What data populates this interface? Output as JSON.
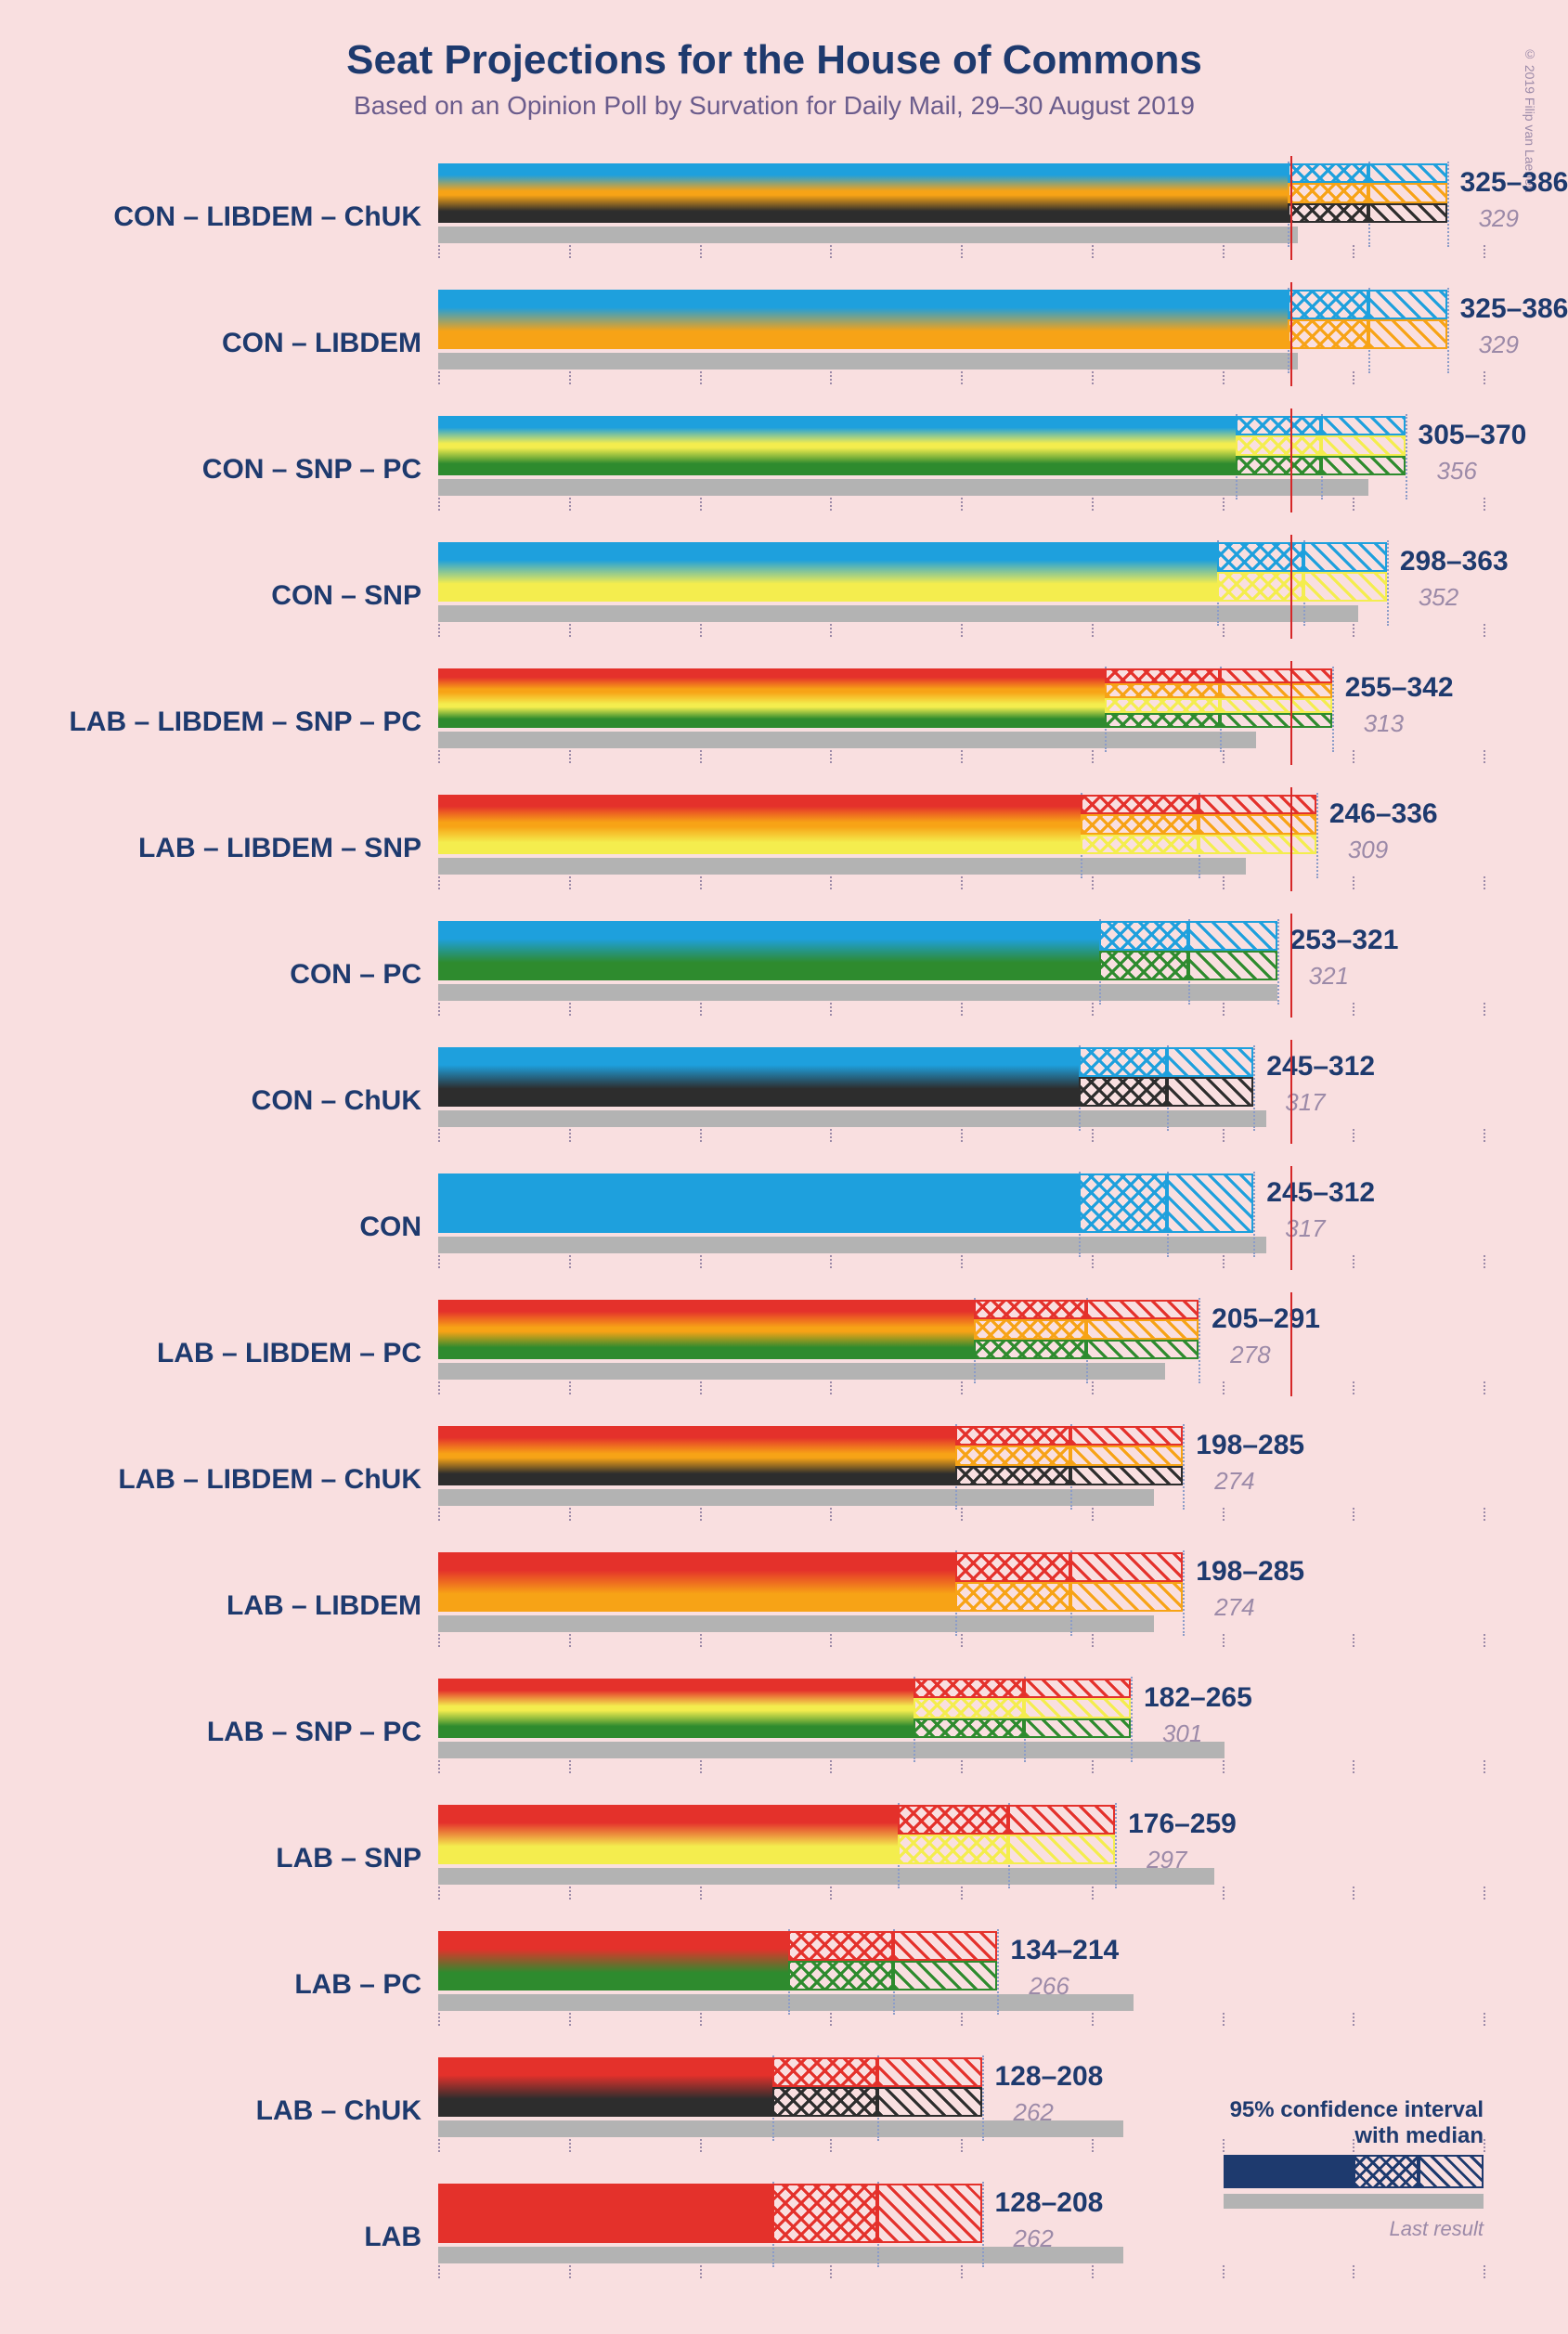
{
  "title": "Seat Projections for the House of Commons",
  "subtitle": "Based on an Opinion Poll by Survation for Daily Mail, 29–30 August 2019",
  "copyright": "© 2019 Filip van Laenen",
  "chart": {
    "xmax": 400,
    "tick_step": 50,
    "majority": 326,
    "party_colors": {
      "CON": "#1ea0dd",
      "LAB": "#e4312b",
      "LIBDEM": "#f7a316",
      "SNP": "#f4ed4e",
      "PC": "#2e8b2e",
      "ChUK": "#2d2d2d"
    },
    "prev_color": "#b3b3b3",
    "tick_color": "#9c8aa8",
    "majority_color": "#d62728",
    "guide_color": "#8c9cc8"
  },
  "rows": [
    {
      "label": "CON – LIBDEM – ChUK",
      "parties": [
        "CON",
        "LIBDEM",
        "ChUK"
      ],
      "lo": 325,
      "med": 356,
      "hi": 386,
      "prev": 329,
      "range": "325–386",
      "prev_text": "329"
    },
    {
      "label": "CON – LIBDEM",
      "parties": [
        "CON",
        "LIBDEM"
      ],
      "lo": 325,
      "med": 356,
      "hi": 386,
      "prev": 329,
      "range": "325–386",
      "prev_text": "329"
    },
    {
      "label": "CON – SNP – PC",
      "parties": [
        "CON",
        "SNP",
        "PC"
      ],
      "lo": 305,
      "med": 338,
      "hi": 370,
      "prev": 356,
      "range": "305–370",
      "prev_text": "356"
    },
    {
      "label": "CON – SNP",
      "parties": [
        "CON",
        "SNP"
      ],
      "lo": 298,
      "med": 331,
      "hi": 363,
      "prev": 352,
      "range": "298–363",
      "prev_text": "352"
    },
    {
      "label": "LAB – LIBDEM – SNP – PC",
      "parties": [
        "LAB",
        "LIBDEM",
        "SNP",
        "PC"
      ],
      "lo": 255,
      "med": 299,
      "hi": 342,
      "prev": 313,
      "range": "255–342",
      "prev_text": "313"
    },
    {
      "label": "LAB – LIBDEM – SNP",
      "parties": [
        "LAB",
        "LIBDEM",
        "SNP"
      ],
      "lo": 246,
      "med": 291,
      "hi": 336,
      "prev": 309,
      "range": "246–336",
      "prev_text": "309"
    },
    {
      "label": "CON – PC",
      "parties": [
        "CON",
        "PC"
      ],
      "lo": 253,
      "med": 287,
      "hi": 321,
      "prev": 321,
      "range": "253–321",
      "prev_text": "321"
    },
    {
      "label": "CON – ChUK",
      "parties": [
        "CON",
        "ChUK"
      ],
      "lo": 245,
      "med": 279,
      "hi": 312,
      "prev": 317,
      "range": "245–312",
      "prev_text": "317"
    },
    {
      "label": "CON",
      "parties": [
        "CON"
      ],
      "lo": 245,
      "med": 279,
      "hi": 312,
      "prev": 317,
      "range": "245–312",
      "prev_text": "317"
    },
    {
      "label": "LAB – LIBDEM – PC",
      "parties": [
        "LAB",
        "LIBDEM",
        "PC"
      ],
      "lo": 205,
      "med": 248,
      "hi": 291,
      "prev": 278,
      "range": "205–291",
      "prev_text": "278"
    },
    {
      "label": "LAB – LIBDEM – ChUK",
      "parties": [
        "LAB",
        "LIBDEM",
        "ChUK"
      ],
      "lo": 198,
      "med": 242,
      "hi": 285,
      "prev": 274,
      "range": "198–285",
      "prev_text": "274"
    },
    {
      "label": "LAB – LIBDEM",
      "parties": [
        "LAB",
        "LIBDEM"
      ],
      "lo": 198,
      "med": 242,
      "hi": 285,
      "prev": 274,
      "range": "198–285",
      "prev_text": "274"
    },
    {
      "label": "LAB – SNP – PC",
      "parties": [
        "LAB",
        "SNP",
        "PC"
      ],
      "lo": 182,
      "med": 224,
      "hi": 265,
      "prev": 301,
      "range": "182–265",
      "prev_text": "301"
    },
    {
      "label": "LAB – SNP",
      "parties": [
        "LAB",
        "SNP"
      ],
      "lo": 176,
      "med": 218,
      "hi": 259,
      "prev": 297,
      "range": "176–259",
      "prev_text": "297"
    },
    {
      "label": "LAB – PC",
      "parties": [
        "LAB",
        "PC"
      ],
      "lo": 134,
      "med": 174,
      "hi": 214,
      "prev": 266,
      "range": "134–214",
      "prev_text": "266"
    },
    {
      "label": "LAB – ChUK",
      "parties": [
        "LAB",
        "ChUK"
      ],
      "lo": 128,
      "med": 168,
      "hi": 208,
      "prev": 262,
      "range": "128–208",
      "prev_text": "262"
    },
    {
      "label": "LAB",
      "parties": [
        "LAB"
      ],
      "lo": 128,
      "med": 168,
      "hi": 208,
      "prev": 262,
      "range": "128–208",
      "prev_text": "262"
    }
  ],
  "legend": {
    "ci_label": "95% confidence interval\nwith median",
    "prev_label": "Last result"
  }
}
